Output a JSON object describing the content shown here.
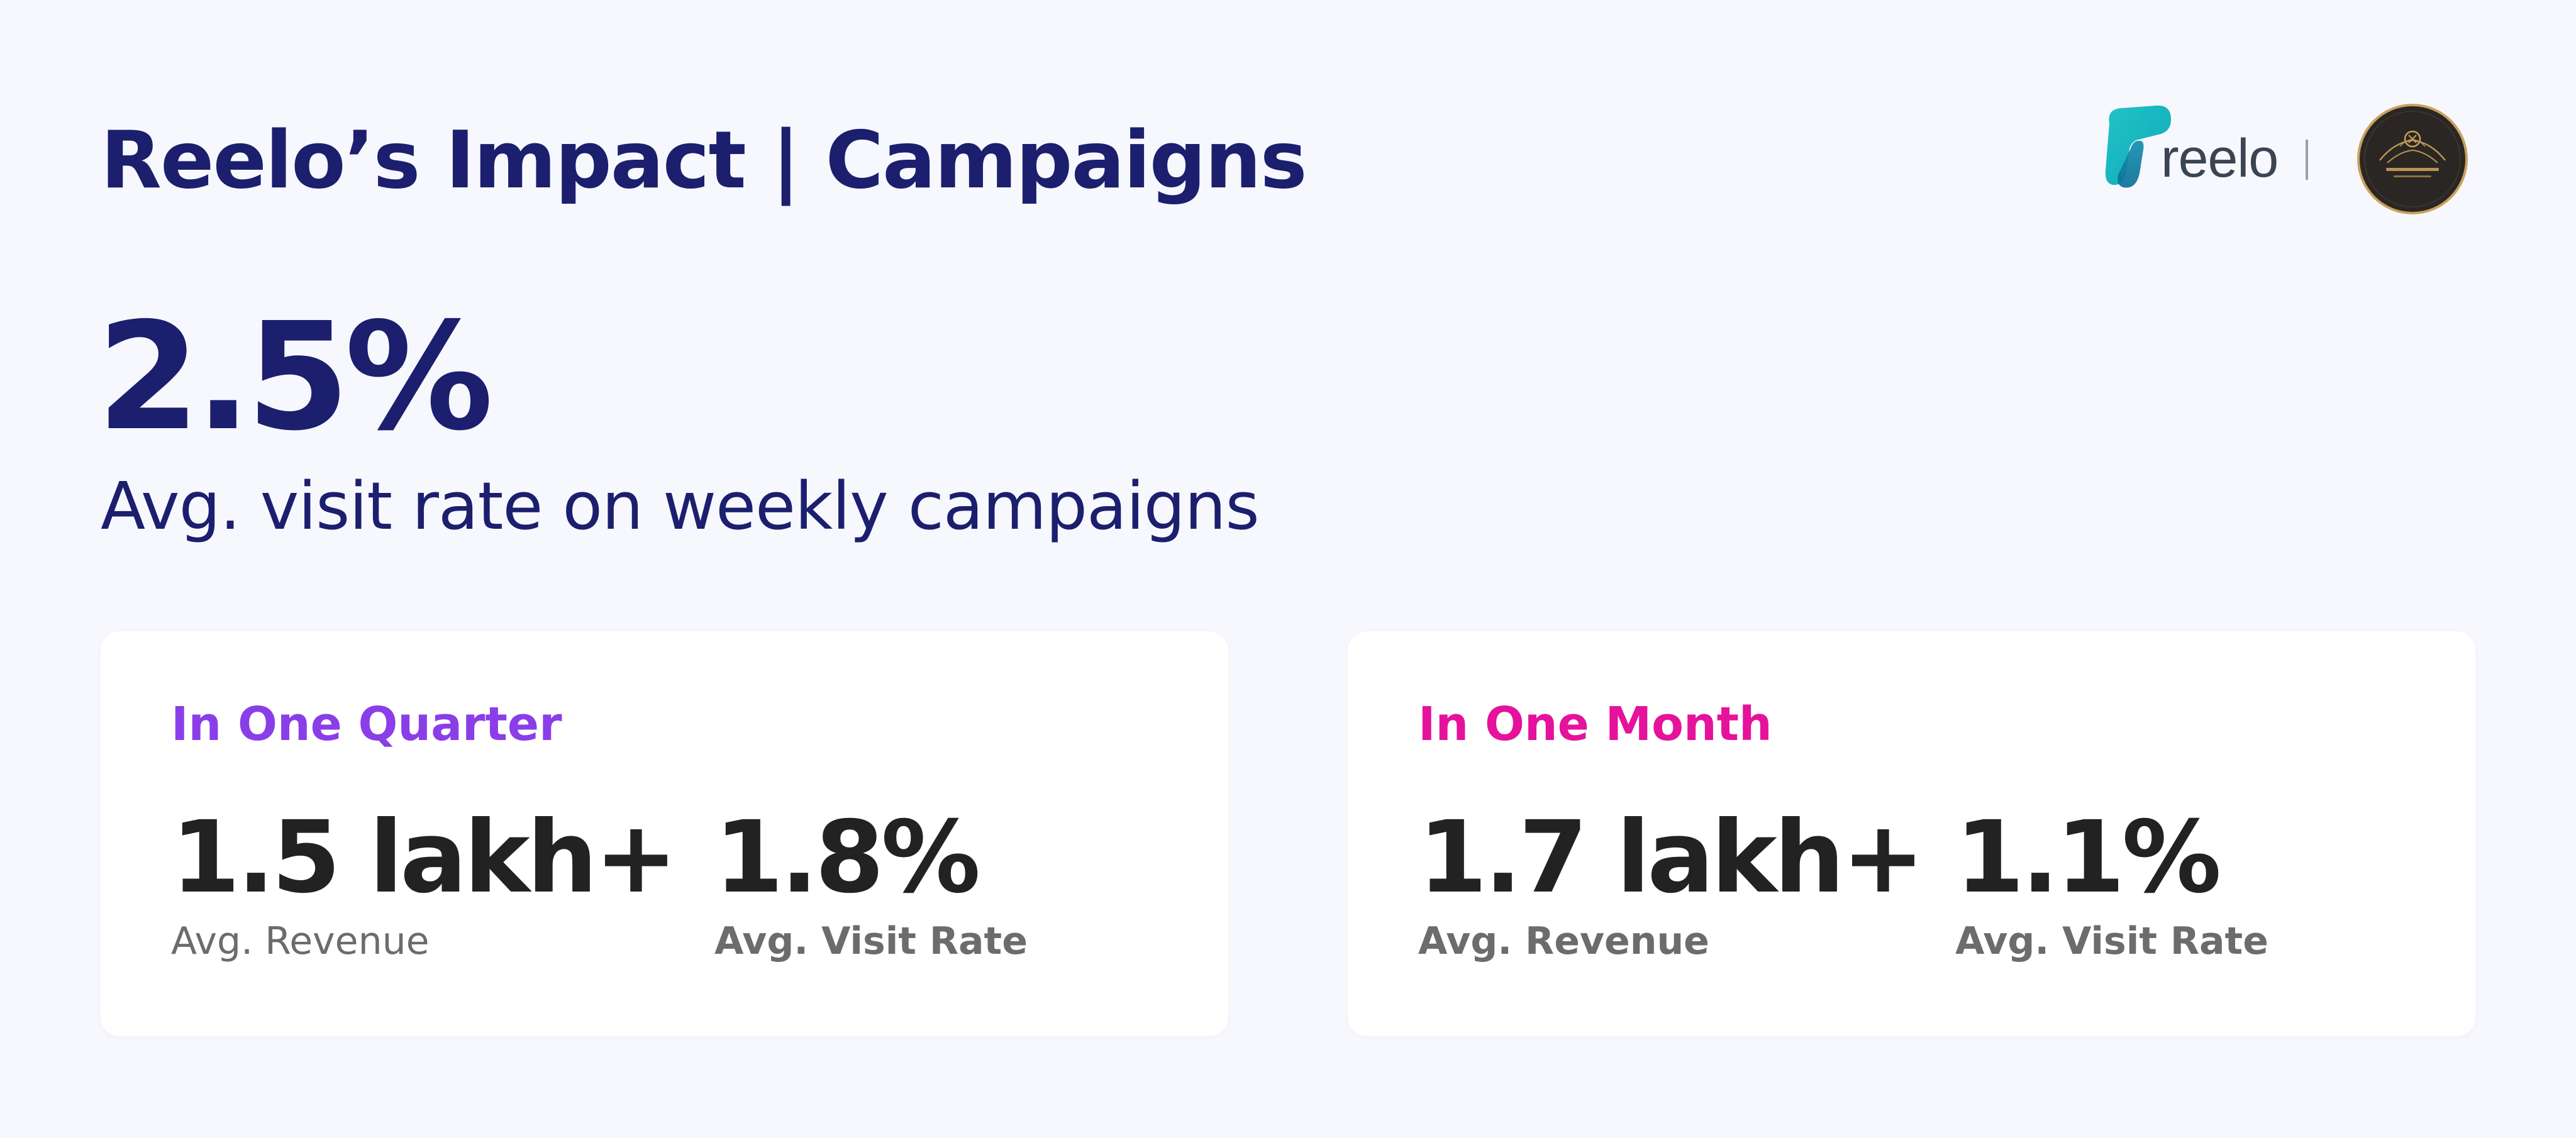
{
  "colors": {
    "background": "#f7f8fd",
    "navy": "#1c1f6e",
    "quarter_accent": "#8a3ee8",
    "month_accent": "#e5129b",
    "metric_text": "#222222",
    "label_text": "#6c6c6c",
    "card_background": "#ffffff"
  },
  "header": {
    "title": "Reelo’s Impact | Campaigns",
    "brand_logo": {
      "icon": "reelo-logo-icon",
      "wordmark": "reelo"
    },
    "partner_logo": {
      "icon": "partner-restaurant-seal-icon"
    }
  },
  "hero": {
    "value": "2.5%",
    "caption": "Avg. visit rate on weekly campaigns"
  },
  "cards": {
    "quarter": {
      "title": "In One Quarter",
      "revenue_value": "1.5 lakh+",
      "revenue_label": "Avg. Revenue",
      "visit_value": "1.8%",
      "visit_label": "Avg. Visit Rate"
    },
    "month": {
      "title": "In One Month",
      "revenue_value": "1.7 lakh+",
      "revenue_label": "Avg. Revenue",
      "visit_value": "1.1%",
      "visit_label": "Avg. Visit Rate"
    }
  }
}
